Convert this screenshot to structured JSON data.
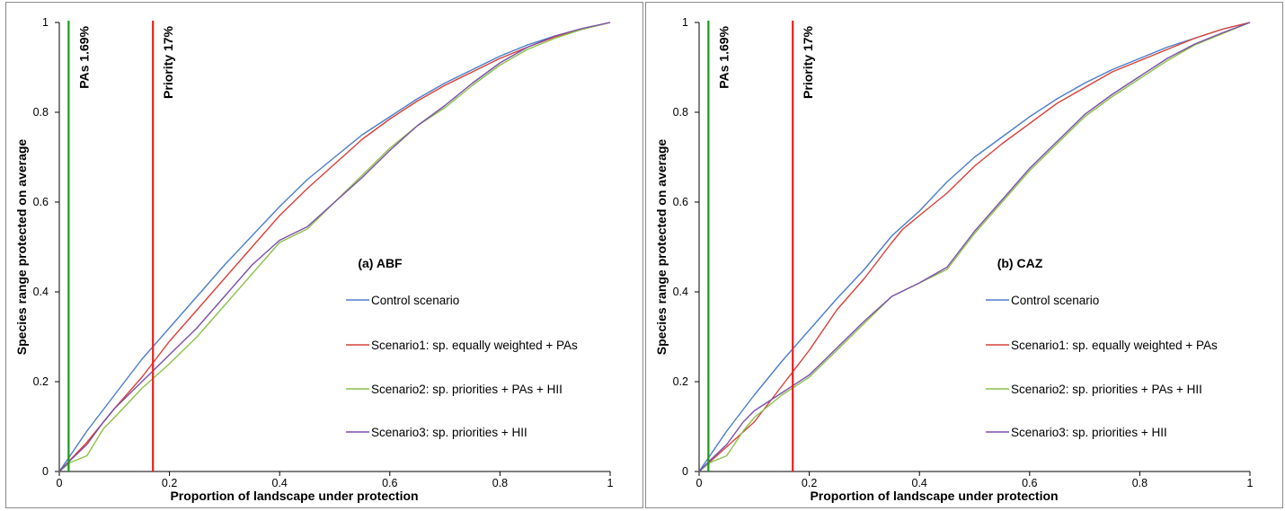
{
  "chart_data": [
    {
      "type": "line",
      "title": "(a) ABF",
      "xlabel": "Proportion of landscape under protection",
      "ylabel": "Species range protected on average",
      "xlim": [
        0,
        1
      ],
      "ylim": [
        0,
        1
      ],
      "xticks": [
        "0",
        "0.2",
        "0.4",
        "0.6",
        "0.8",
        "1"
      ],
      "yticks": [
        "0",
        "0.2",
        "0.4",
        "0.6",
        "0.8",
        "1"
      ],
      "grid": false,
      "legend": "right-center",
      "vlines": [
        {
          "x": 0.0169,
          "label": "PAs 1.69%",
          "color": "#1a9a1a"
        },
        {
          "x": 0.17,
          "label": "Priority 17%",
          "color": "#e8201c"
        }
      ],
      "series": [
        {
          "name": "Control scenario",
          "color": "#4a7ec8",
          "x": [
            0,
            0.05,
            0.1,
            0.15,
            0.2,
            0.25,
            0.3,
            0.35,
            0.4,
            0.45,
            0.5,
            0.55,
            0.6,
            0.65,
            0.7,
            0.75,
            0.8,
            0.85,
            0.9,
            0.95,
            1
          ],
          "y": [
            0,
            0.09,
            0.17,
            0.25,
            0.32,
            0.39,
            0.46,
            0.525,
            0.59,
            0.65,
            0.7,
            0.75,
            0.79,
            0.83,
            0.865,
            0.895,
            0.925,
            0.95,
            0.97,
            0.985,
            1
          ]
        },
        {
          "name": "Scenario1: sp. equally weighted + PAs",
          "color": "#d9403a",
          "x": [
            0,
            0.05,
            0.1,
            0.15,
            0.2,
            0.25,
            0.3,
            0.35,
            0.4,
            0.45,
            0.5,
            0.55,
            0.6,
            0.65,
            0.7,
            0.75,
            0.8,
            0.85,
            0.9,
            0.95,
            1
          ],
          "y": [
            0,
            0.065,
            0.14,
            0.21,
            0.29,
            0.36,
            0.43,
            0.5,
            0.57,
            0.63,
            0.685,
            0.74,
            0.785,
            0.825,
            0.86,
            0.89,
            0.92,
            0.945,
            0.968,
            0.985,
            1
          ]
        },
        {
          "name": "Scenario2: sp. priorities + PAs + HII",
          "color": "#8cc14c",
          "x": [
            0,
            0.02,
            0.05,
            0.08,
            0.1,
            0.15,
            0.2,
            0.25,
            0.3,
            0.35,
            0.4,
            0.45,
            0.5,
            0.55,
            0.6,
            0.65,
            0.7,
            0.75,
            0.8,
            0.85,
            0.9,
            0.95,
            1
          ],
          "y": [
            0,
            0.02,
            0.035,
            0.095,
            0.12,
            0.185,
            0.24,
            0.3,
            0.37,
            0.44,
            0.51,
            0.54,
            0.6,
            0.66,
            0.72,
            0.77,
            0.81,
            0.86,
            0.905,
            0.94,
            0.965,
            0.985,
            1
          ]
        },
        {
          "name": "Scenario3: sp. priorities + HII",
          "color": "#7b4fa8",
          "x": [
            0,
            0.02,
            0.05,
            0.08,
            0.1,
            0.15,
            0.2,
            0.25,
            0.3,
            0.35,
            0.4,
            0.45,
            0.5,
            0.55,
            0.6,
            0.65,
            0.7,
            0.75,
            0.8,
            0.85,
            0.9,
            0.95,
            1
          ],
          "y": [
            0,
            0.025,
            0.06,
            0.11,
            0.14,
            0.2,
            0.26,
            0.32,
            0.39,
            0.46,
            0.515,
            0.545,
            0.6,
            0.655,
            0.715,
            0.77,
            0.815,
            0.865,
            0.91,
            0.945,
            0.97,
            0.987,
            1
          ]
        }
      ]
    },
    {
      "type": "line",
      "title": "(b) CAZ",
      "xlabel": "Proportion of landscape under protection",
      "ylabel": "Species range protected on average",
      "xlim": [
        0,
        1
      ],
      "ylim": [
        0,
        1
      ],
      "xticks": [
        "0",
        "0.2",
        "0.4",
        "0.6",
        "0.8",
        "1"
      ],
      "yticks": [
        "0",
        "0.2",
        "0.4",
        "0.6",
        "0.8",
        "1"
      ],
      "grid": false,
      "legend": "right-center",
      "vlines": [
        {
          "x": 0.0169,
          "label": "PAs 1.69%",
          "color": "#1a9a1a"
        },
        {
          "x": 0.17,
          "label": "Priority 17%",
          "color": "#e8201c"
        }
      ],
      "series": [
        {
          "name": "Control scenario",
          "color": "#4a7ec8",
          "x": [
            0,
            0.05,
            0.1,
            0.15,
            0.2,
            0.25,
            0.3,
            0.35,
            0.4,
            0.45,
            0.5,
            0.55,
            0.6,
            0.65,
            0.7,
            0.75,
            0.8,
            0.85,
            0.9,
            0.95,
            1
          ],
          "y": [
            0,
            0.09,
            0.17,
            0.245,
            0.315,
            0.385,
            0.45,
            0.525,
            0.58,
            0.645,
            0.7,
            0.745,
            0.79,
            0.83,
            0.865,
            0.895,
            0.92,
            0.945,
            0.965,
            0.985,
            1
          ]
        },
        {
          "name": "Scenario1: sp. equally weighted + PAs",
          "color": "#d9403a",
          "x": [
            0,
            0.05,
            0.1,
            0.15,
            0.2,
            0.25,
            0.3,
            0.35,
            0.37,
            0.4,
            0.45,
            0.5,
            0.55,
            0.6,
            0.65,
            0.7,
            0.75,
            0.8,
            0.85,
            0.9,
            0.95,
            1
          ],
          "y": [
            0,
            0.055,
            0.11,
            0.19,
            0.27,
            0.36,
            0.43,
            0.51,
            0.54,
            0.57,
            0.62,
            0.68,
            0.73,
            0.775,
            0.82,
            0.855,
            0.89,
            0.915,
            0.94,
            0.965,
            0.985,
            1
          ]
        },
        {
          "name": "Scenario2: sp. priorities + PAs + HII",
          "color": "#8cc14c",
          "x": [
            0,
            0.02,
            0.05,
            0.08,
            0.1,
            0.15,
            0.2,
            0.25,
            0.3,
            0.35,
            0.4,
            0.45,
            0.5,
            0.55,
            0.6,
            0.65,
            0.7,
            0.75,
            0.8,
            0.85,
            0.9,
            0.95,
            1
          ],
          "y": [
            0,
            0.02,
            0.035,
            0.09,
            0.12,
            0.17,
            0.21,
            0.27,
            0.33,
            0.39,
            0.42,
            0.45,
            0.53,
            0.6,
            0.67,
            0.73,
            0.79,
            0.835,
            0.875,
            0.915,
            0.95,
            0.975,
            1
          ]
        },
        {
          "name": "Scenario3: sp. priorities + HII",
          "color": "#7b4fa8",
          "x": [
            0,
            0.02,
            0.05,
            0.08,
            0.1,
            0.15,
            0.2,
            0.25,
            0.3,
            0.35,
            0.4,
            0.45,
            0.5,
            0.55,
            0.6,
            0.65,
            0.7,
            0.75,
            0.8,
            0.85,
            0.9,
            0.95,
            1
          ],
          "y": [
            0,
            0.025,
            0.06,
            0.11,
            0.135,
            0.175,
            0.215,
            0.275,
            0.335,
            0.39,
            0.42,
            0.455,
            0.535,
            0.605,
            0.675,
            0.735,
            0.795,
            0.84,
            0.88,
            0.92,
            0.952,
            0.977,
            1
          ]
        }
      ]
    }
  ]
}
